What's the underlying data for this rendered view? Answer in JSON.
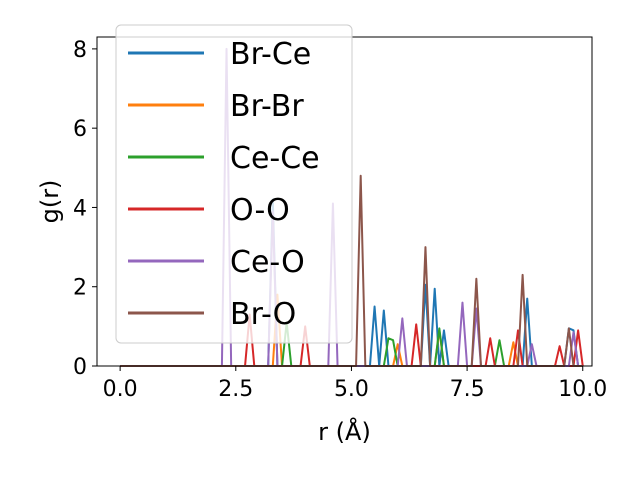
{
  "chart_data": {
    "type": "line",
    "xlabel": "r (Å)",
    "ylabel": "g(r)",
    "xlim": [
      -0.5,
      10.2
    ],
    "ylim": [
      0,
      8.3
    ],
    "xticks": [
      0.0,
      2.5,
      5.0,
      7.5,
      10.0
    ],
    "xtick_labels": [
      "0.0",
      "2.5",
      "5.0",
      "7.5",
      "10.0"
    ],
    "yticks": [
      0,
      2,
      4,
      6,
      8
    ],
    "ytick_labels": [
      "0",
      "2",
      "4",
      "6",
      "8"
    ],
    "grid": false,
    "legend_position": "upper-left",
    "r_start": 0.0,
    "r_step": 0.1,
    "series": [
      {
        "name": "Br-Ce",
        "color": "#1f77b4",
        "values": [
          0,
          0,
          0,
          0,
          0,
          0,
          0,
          0,
          0,
          0,
          0,
          0,
          0,
          0,
          0,
          0,
          0,
          0,
          0,
          0,
          0,
          0,
          0,
          0,
          0,
          0,
          0,
          0,
          0,
          0,
          0,
          0,
          0,
          4.2,
          0,
          0,
          0,
          0,
          0,
          0,
          0,
          0,
          0,
          0,
          0,
          0,
          0,
          0,
          0,
          0,
          0,
          0,
          0,
          0,
          0,
          1.5,
          0,
          1.4,
          0,
          0,
          0,
          0,
          0,
          0,
          0,
          0,
          2.05,
          0,
          1.95,
          0,
          0.9,
          0,
          0,
          0,
          0,
          0,
          0,
          0,
          0,
          0,
          0,
          0,
          0,
          0,
          0,
          0,
          0,
          0,
          1.7,
          0,
          0,
          0,
          0,
          0,
          0,
          0,
          0,
          0.95,
          0.9,
          0
        ]
      },
      {
        "name": "Br-Br",
        "color": "#ff7f0e",
        "values": [
          0,
          0,
          0,
          0,
          0,
          0,
          0,
          0,
          0,
          0,
          0,
          0,
          0,
          0,
          0,
          0,
          0,
          0,
          0,
          0,
          0,
          0,
          0,
          0,
          0,
          0,
          0,
          0,
          0,
          0,
          0,
          0,
          0,
          0,
          1.8,
          0,
          0,
          0,
          0,
          0,
          0,
          0,
          0,
          0,
          0,
          0,
          0,
          0,
          0,
          0,
          0,
          0,
          0,
          0,
          0,
          0,
          0,
          0,
          0,
          0,
          0.55,
          0,
          0,
          0,
          0,
          0,
          0,
          0,
          0,
          0.9,
          0,
          0,
          0,
          0,
          0,
          0,
          0,
          0,
          0,
          0,
          0,
          0,
          0,
          0,
          0,
          0.6,
          0,
          0,
          0,
          0,
          0,
          0,
          0,
          0,
          0,
          0,
          0,
          0,
          0,
          0,
          0
        ]
      },
      {
        "name": "Ce-Ce",
        "color": "#2ca02c",
        "values": [
          0,
          0,
          0,
          0,
          0,
          0,
          0,
          0,
          0,
          0,
          0,
          0,
          0,
          0,
          0,
          0,
          0,
          0,
          0,
          0,
          0,
          0,
          0,
          0,
          0,
          0,
          0,
          0,
          0,
          0,
          0,
          0,
          0,
          0,
          0,
          0,
          1.1,
          0,
          0,
          0,
          0,
          0,
          0,
          0,
          0,
          0,
          0,
          0,
          0,
          0,
          0,
          0,
          0,
          0,
          0,
          0,
          0,
          0,
          0.7,
          0.65,
          0,
          0,
          0,
          0,
          0,
          0,
          0,
          0,
          0,
          0.95,
          0,
          0,
          0,
          0,
          0,
          0,
          0,
          0,
          0,
          0,
          0,
          0,
          0.65,
          0,
          0,
          0,
          0,
          0,
          0,
          0,
          0,
          0,
          0,
          0,
          0,
          0,
          0,
          0,
          0,
          0,
          0
        ]
      },
      {
        "name": "O-O",
        "color": "#d62728",
        "values": [
          0,
          0,
          0,
          0,
          0,
          0,
          0,
          0,
          0,
          0,
          0,
          0,
          0,
          0,
          0,
          0,
          0,
          0,
          0,
          0,
          0,
          0,
          0,
          0,
          0,
          0,
          0,
          0,
          1.3,
          0,
          0,
          0,
          0,
          0,
          0,
          0,
          0,
          0,
          0,
          0,
          1.0,
          0,
          0,
          0,
          0,
          0,
          0,
          0,
          0,
          0,
          0,
          0,
          0,
          0,
          0,
          0,
          0,
          0,
          0,
          0,
          0,
          0,
          0,
          0,
          1.05,
          0,
          0,
          0,
          0,
          0,
          0,
          0,
          0,
          0,
          0,
          0,
          0,
          0,
          0,
          0,
          0.7,
          0,
          0,
          0,
          0,
          0,
          0.9,
          0,
          0,
          0,
          0,
          0,
          0,
          0,
          0,
          0.5,
          0,
          0,
          0,
          0.9,
          0
        ]
      },
      {
        "name": "Ce-O",
        "color": "#9467bd",
        "values": [
          0,
          0,
          0,
          0,
          0,
          0,
          0,
          0,
          0,
          0,
          0,
          0,
          0,
          0,
          0,
          0,
          0,
          0,
          0,
          0,
          0,
          0,
          0,
          8.0,
          0,
          0,
          0,
          0,
          0,
          0,
          0,
          0,
          0,
          3.9,
          0,
          0,
          0,
          0,
          0,
          0,
          0,
          0,
          0,
          0,
          0,
          0,
          4.1,
          0,
          0,
          0,
          0,
          0,
          0,
          0,
          0,
          0,
          0,
          0,
          0,
          0,
          0,
          1.2,
          0,
          0,
          0,
          0,
          0,
          0,
          0,
          0,
          0,
          0,
          0,
          0,
          1.6,
          0,
          0,
          1.45,
          0,
          0,
          0,
          0,
          0,
          0,
          0,
          0,
          0,
          0,
          0,
          0.55,
          0,
          0,
          0,
          0,
          0,
          0,
          0,
          0,
          0.85,
          0,
          0
        ]
      },
      {
        "name": "Br-O",
        "color": "#8c564b",
        "values": [
          0,
          0,
          0,
          0,
          0,
          0,
          0,
          0,
          0,
          0,
          0,
          0,
          0,
          0,
          0,
          0,
          0,
          0,
          0,
          0,
          0,
          0,
          0,
          0,
          0,
          0,
          0,
          0,
          0,
          0,
          0,
          0,
          0,
          0,
          0,
          0,
          0,
          0,
          0,
          0,
          0,
          0,
          0,
          0,
          0,
          0,
          0,
          0,
          0,
          0,
          0,
          0,
          4.8,
          0,
          0,
          0,
          0,
          0,
          0,
          0,
          0,
          0,
          0,
          0,
          0,
          0,
          3.0,
          0,
          0,
          0,
          0,
          0,
          0,
          0,
          0,
          0,
          0,
          2.2,
          0,
          0,
          0,
          0,
          0,
          0,
          0,
          0,
          0,
          2.3,
          0,
          0,
          0,
          0,
          0,
          0,
          0,
          0,
          0,
          0.95,
          0,
          0,
          0
        ]
      }
    ]
  }
}
